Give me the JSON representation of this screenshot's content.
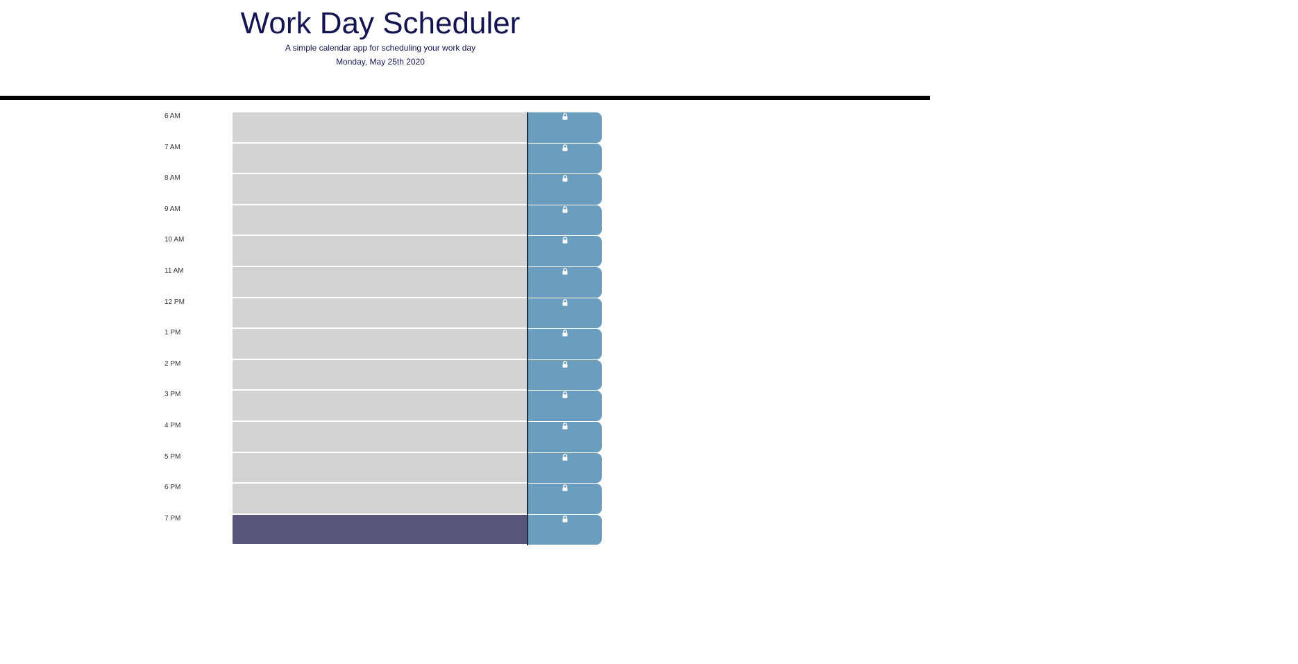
{
  "header": {
    "title": "Work Day Scheduler",
    "subtitle": "A simple calendar app for scheduling your work day",
    "date": "Monday, May 25th 2020"
  },
  "hours": [
    {
      "label": "6 AM",
      "state": "past",
      "text": ""
    },
    {
      "label": "7 AM",
      "state": "past",
      "text": ""
    },
    {
      "label": "8 AM",
      "state": "past",
      "text": ""
    },
    {
      "label": "9 AM",
      "state": "past",
      "text": ""
    },
    {
      "label": "10 AM",
      "state": "past",
      "text": ""
    },
    {
      "label": "11 AM",
      "state": "past",
      "text": ""
    },
    {
      "label": "12 PM",
      "state": "past",
      "text": ""
    },
    {
      "label": "1 PM",
      "state": "past",
      "text": ""
    },
    {
      "label": "2 PM",
      "state": "past",
      "text": ""
    },
    {
      "label": "3 PM",
      "state": "past",
      "text": ""
    },
    {
      "label": "4 PM",
      "state": "past",
      "text": ""
    },
    {
      "label": "5 PM",
      "state": "past",
      "text": ""
    },
    {
      "label": "6 PM",
      "state": "past",
      "text": ""
    },
    {
      "label": "7 PM",
      "state": "present",
      "text": ""
    }
  ],
  "save_icon": "lock-icon",
  "colors": {
    "title": "#141453",
    "past": "#d3d3d3",
    "present": "#575579",
    "save_button": "#6a9dbe",
    "rule": "#000000"
  }
}
